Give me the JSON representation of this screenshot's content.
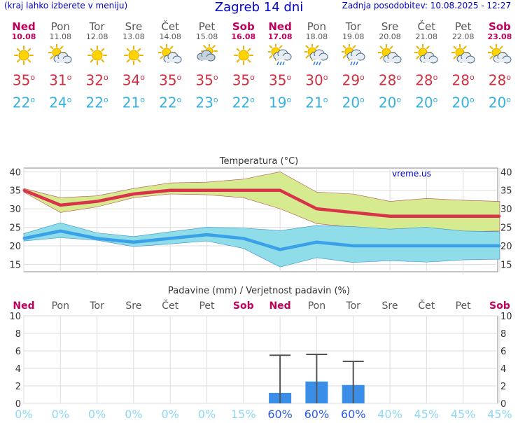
{
  "header": {
    "menu_note": "(kraj lahko izberete v meniju)",
    "title": "Zagreb 14 dni",
    "updated": "Zadnja posodobitev: 10.08.2025 - 12:27"
  },
  "forecast": [
    {
      "day": "Ned",
      "date": "10.08",
      "icon": "sun",
      "tmax": 35,
      "tmin": 22,
      "sunday": true
    },
    {
      "day": "Pon",
      "date": "11.08",
      "icon": "sun-cloud",
      "tmax": 31,
      "tmin": 24,
      "sunday": false
    },
    {
      "day": "Tor",
      "date": "12.08",
      "icon": "sun",
      "tmax": 32,
      "tmin": 22,
      "sunday": false
    },
    {
      "day": "Sre",
      "date": "13.08",
      "icon": "sun",
      "tmax": 34,
      "tmin": 21,
      "sunday": false
    },
    {
      "day": "Čet",
      "date": "14.08",
      "icon": "sun-cloud",
      "tmax": 35,
      "tmin": 22,
      "sunday": false
    },
    {
      "day": "Pet",
      "date": "15.08",
      "icon": "cloud",
      "tmax": 35,
      "tmin": 23,
      "sunday": false
    },
    {
      "day": "Sob",
      "date": "16.08",
      "icon": "sun",
      "tmax": 35,
      "tmin": 22,
      "sunday": true
    },
    {
      "day": "Ned",
      "date": "17.08",
      "icon": "sun-rain",
      "tmax": 35,
      "tmin": 19,
      "sunday": true
    },
    {
      "day": "Pon",
      "date": "18.08",
      "icon": "sun-rain",
      "tmax": 30,
      "tmin": 21,
      "sunday": false
    },
    {
      "day": "Tor",
      "date": "19.08",
      "icon": "sun-rain",
      "tmax": 29,
      "tmin": 20,
      "sunday": false
    },
    {
      "day": "Sre",
      "date": "20.08",
      "icon": "sun-cloud",
      "tmax": 28,
      "tmin": 20,
      "sunday": false
    },
    {
      "day": "Čet",
      "date": "21.08",
      "icon": "sun-cloud",
      "tmax": 28,
      "tmin": 20,
      "sunday": false
    },
    {
      "day": "Pet",
      "date": "22.08",
      "icon": "sun-cloud",
      "tmax": 28,
      "tmin": 20,
      "sunday": false
    },
    {
      "day": "Sob",
      "date": "23.08",
      "icon": "sun-cloud",
      "tmax": 28,
      "tmin": 20,
      "sunday": true
    }
  ],
  "colors": {
    "max_line": "#d8334a",
    "max_band": "#d6ea8f",
    "min_line": "#3aa0e8",
    "min_band": "#8fdde9",
    "bar": "#3a8ee8",
    "prob_high": "#2b5ce6",
    "prob_low": "#8ed8f5",
    "sunday": "#c0005a"
  },
  "chart_data": [
    {
      "type": "line",
      "title": "Temperatura (°C)",
      "watermark": "vreme.us",
      "x": [
        "Ned",
        "Pon",
        "Tor",
        "Sre",
        "Čet",
        "Pet",
        "Sob",
        "Ned",
        "Pon",
        "Tor",
        "Sre",
        "Čet",
        "Pet",
        "Sob"
      ],
      "ylim": [
        13,
        41
      ],
      "yticks": [
        15,
        20,
        25,
        30,
        35,
        40
      ],
      "series": [
        {
          "role": "max",
          "values": [
            35,
            31,
            32,
            34,
            35,
            35,
            35,
            35,
            30,
            29,
            28,
            28,
            28,
            28
          ],
          "upper": [
            35.5,
            33,
            33.5,
            35.5,
            37,
            37.2,
            38,
            40,
            34.5,
            34,
            32,
            32.8,
            32.3,
            32
          ],
          "lower": [
            34.5,
            29,
            30.5,
            33,
            34,
            33.8,
            33,
            30,
            26,
            25,
            24.3,
            23.8,
            23.8,
            24
          ]
        },
        {
          "role": "min",
          "values": [
            22,
            24,
            22,
            21,
            22,
            23,
            22,
            19,
            21,
            20,
            20,
            20,
            20,
            20
          ],
          "upper": [
            23.3,
            26.2,
            23.5,
            22.5,
            23.8,
            25,
            24.8,
            24.1,
            25.5,
            25.2,
            24.5,
            25,
            24,
            23.8
          ],
          "lower": [
            21.3,
            22.2,
            21.5,
            19.8,
            20.5,
            21.3,
            19.3,
            14.3,
            16.8,
            15.5,
            16,
            15.6,
            16.2,
            16.4
          ]
        }
      ],
      "grid": true
    },
    {
      "type": "bar",
      "title": "Padavine (mm) / Verjetnost padavin (%)",
      "x": [
        "Ned",
        "Pon",
        "Tor",
        "Sre",
        "Čet",
        "Pet",
        "Sob",
        "Ned",
        "Pon",
        "Tor",
        "Sre",
        "Čet",
        "Pet",
        "Sob"
      ],
      "ylim": [
        0,
        10
      ],
      "yticks": [
        0,
        2,
        4,
        6,
        8,
        10
      ],
      "values": [
        0,
        0,
        0,
        0,
        0,
        0,
        0,
        1.2,
        2.5,
        2.1,
        0,
        0,
        0,
        0
      ],
      "error_high": [
        0,
        0,
        0,
        0,
        0,
        0,
        0,
        5.5,
        5.6,
        4.8,
        0,
        0,
        0,
        0
      ],
      "probability": [
        "0%",
        "0%",
        "0%",
        "0%",
        "0%",
        "0%",
        "15%",
        "60%",
        "60%",
        "60%",
        "40%",
        "45%",
        "45%",
        "45%"
      ],
      "grid": true
    }
  ]
}
